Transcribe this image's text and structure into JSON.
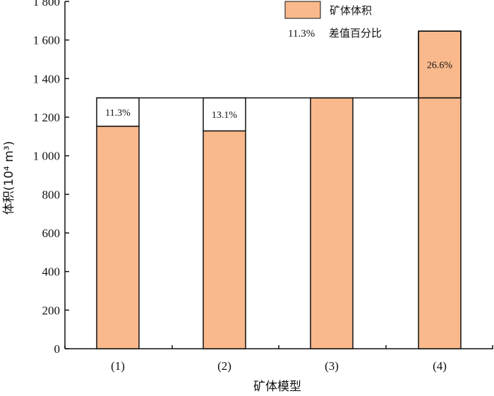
{
  "chart_data": {
    "type": "bar",
    "categories": [
      "(1)",
      "(2)",
      "(3)",
      "(4)"
    ],
    "values": [
      1153,
      1129,
      1300,
      1646
    ],
    "reference_value": 1300,
    "difference_labels": [
      "11.3%",
      "13.1%",
      "",
      "26.6%"
    ],
    "ylim": [
      0,
      1800
    ],
    "yticks": [
      0,
      200,
      400,
      600,
      800,
      1000,
      1200,
      1400,
      1600,
      1800
    ],
    "ytick_labels": [
      "0",
      "200",
      "400",
      "600",
      "800",
      "1 000",
      "1 200",
      "1 400",
      "1 600",
      "1 800"
    ],
    "ylabel": "体积(10⁴ m³)",
    "xlabel": "矿体模型",
    "legend": {
      "placement": "top-right",
      "bar_entry": "矿体体积",
      "pct_sample": "11.3%",
      "pct_entry": "差值百分比"
    },
    "colors": {
      "bar_fill": "#f9b98c",
      "stroke": "#111111"
    }
  }
}
